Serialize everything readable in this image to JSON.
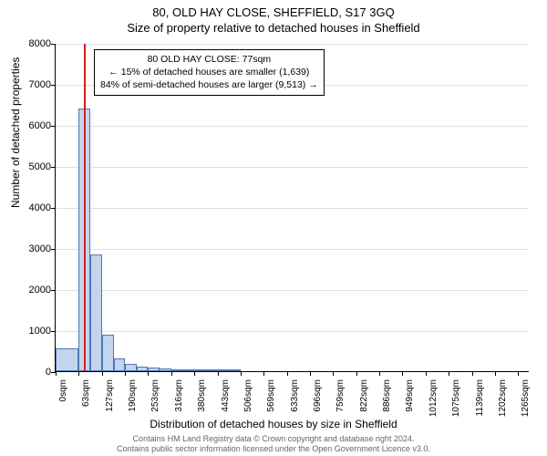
{
  "title": "80, OLD HAY CLOSE, SHEFFIELD, S17 3GQ",
  "subtitle": "Size of property relative to detached houses in Sheffield",
  "ylabel": "Number of detached properties",
  "xlabel": "Distribution of detached houses by size in Sheffield",
  "chart": {
    "type": "histogram",
    "ylim": [
      0,
      8000
    ],
    "ytick_step": 1000,
    "yticks": [
      0,
      1000,
      2000,
      3000,
      4000,
      5000,
      6000,
      7000,
      8000
    ],
    "xticks": [
      "0sqm",
      "63sqm",
      "127sqm",
      "190sqm",
      "253sqm",
      "316sqm",
      "380sqm",
      "443sqm",
      "506sqm",
      "569sqm",
      "633sqm",
      "696sqm",
      "759sqm",
      "822sqm",
      "886sqm",
      "949sqm",
      "1012sqm",
      "1075sqm",
      "1139sqm",
      "1202sqm",
      "1265sqm"
    ],
    "xtick_values": [
      0,
      63,
      127,
      190,
      253,
      316,
      380,
      443,
      506,
      569,
      633,
      696,
      759,
      822,
      886,
      949,
      1012,
      1075,
      1139,
      1202,
      1265
    ],
    "xlim": [
      0,
      1297
    ],
    "bar_color": "#c3d4ec",
    "bar_border_color": "#4f78b5",
    "grid_color": "#e0e0e0",
    "background_color": "#ffffff",
    "marker_color": "#d62020",
    "marker_x": 77,
    "bars": [
      {
        "x0": 0,
        "x1": 63,
        "value": 550
      },
      {
        "x0": 63,
        "x1": 95,
        "value": 6400
      },
      {
        "x0": 95,
        "x1": 127,
        "value": 2850
      },
      {
        "x0": 127,
        "x1": 159,
        "value": 900
      },
      {
        "x0": 159,
        "x1": 190,
        "value": 320
      },
      {
        "x0": 190,
        "x1": 222,
        "value": 180
      },
      {
        "x0": 222,
        "x1": 253,
        "value": 120
      },
      {
        "x0": 253,
        "x1": 285,
        "value": 90
      },
      {
        "x0": 285,
        "x1": 316,
        "value": 70
      },
      {
        "x0": 316,
        "x1": 348,
        "value": 55
      },
      {
        "x0": 348,
        "x1": 380,
        "value": 45
      },
      {
        "x0": 380,
        "x1": 412,
        "value": 35
      },
      {
        "x0": 412,
        "x1": 443,
        "value": 28
      },
      {
        "x0": 443,
        "x1": 475,
        "value": 22
      },
      {
        "x0": 475,
        "x1": 506,
        "value": 18
      }
    ]
  },
  "annotation": {
    "line1": "80 OLD HAY CLOSE: 77sqm",
    "line2": "← 15% of detached houses are smaller (1,639)",
    "line3": "84% of semi-detached houses are larger (9,513) →"
  },
  "footer": {
    "line1": "Contains HM Land Registry data © Crown copyright and database right 2024.",
    "line2": "Contains public sector information licensed under the Open Government Licence v3.0."
  }
}
